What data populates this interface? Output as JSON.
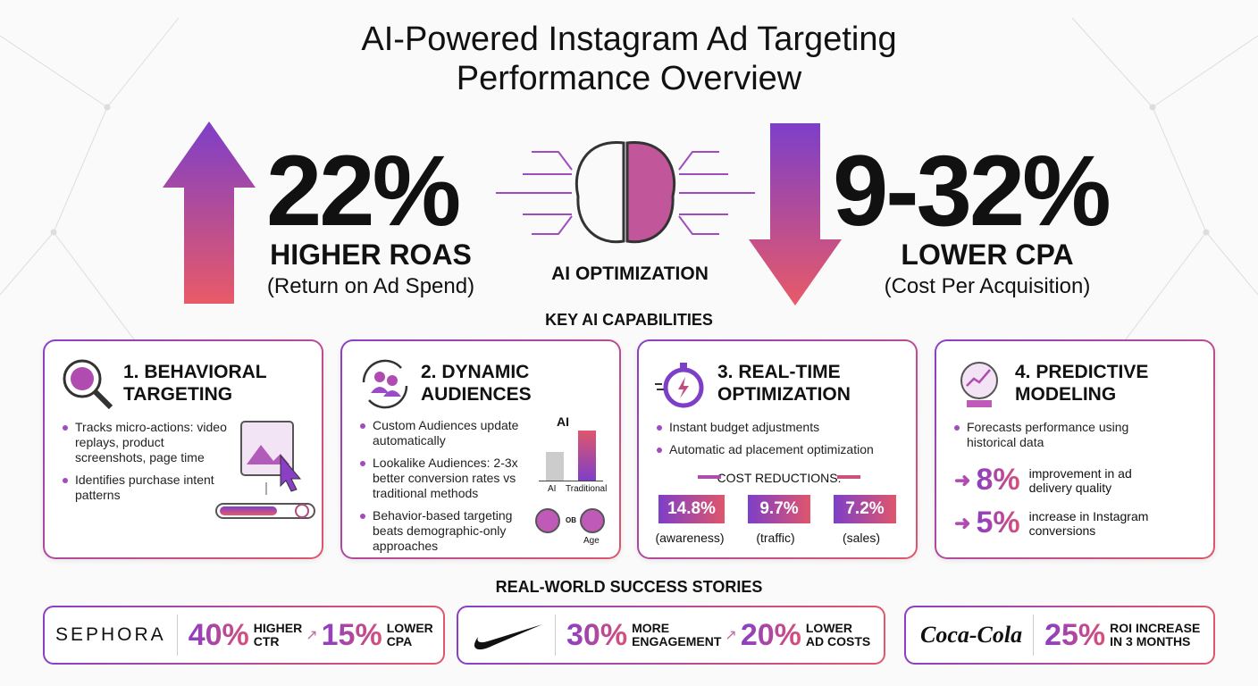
{
  "title": {
    "line1": "AI-Powered Instagram Ad Targeting",
    "line2": "Performance Overview"
  },
  "hero": {
    "left": {
      "value": "22%",
      "label": "HIGHER ROAS",
      "sublabel": "(Return on Ad Spend)"
    },
    "center": {
      "label": "AI OPTIMIZATION",
      "icon": "brain-circuit-icon"
    },
    "right": {
      "value": "9-32%",
      "label": "LOWER CPA",
      "sublabel": "(Cost Per Acquisition)"
    }
  },
  "capabilities": {
    "heading": "KEY AI CAPABILITIES",
    "cards": [
      {
        "title1": "1. BEHAVIORAL",
        "title2": "TARGETING",
        "icon": "brain-magnifier-icon",
        "bullets": [
          "Tracks micro-actions: video replays, product screenshots, page time",
          "Identifies purchase intent patterns"
        ]
      },
      {
        "title1": "2. DYNAMIC",
        "title2": "AUDIENCES",
        "icon": "audience-refresh-icon",
        "bullets": [
          "Custom Audiences update automatically",
          "Lookalike Audiences: 2-3x better conversion rates vs traditional methods",
          "Behavior-based targeting beats demographic-only approaches"
        ],
        "chart": {
          "top_label": "AI",
          "labels": [
            "AI",
            "Traditional"
          ]
        },
        "or_label": "OB",
        "age_label": "Age"
      },
      {
        "title1": "3. REAL-TIME",
        "title2": "OPTIMIZATION",
        "icon": "stopwatch-icon",
        "bullets": [
          "Instant budget adjustments",
          "Automatic ad placement optimization"
        ],
        "cost_heading": "COST REDUCTIONS:",
        "reductions": [
          {
            "value": "14.8%",
            "label": "(awareness)"
          },
          {
            "value": "9.7%",
            "label": "(traffic)"
          },
          {
            "value": "7.2%",
            "label": "(sales)"
          }
        ]
      },
      {
        "title1": "4. PREDICTIVE",
        "title2": "MODELING",
        "icon": "crystal-ball-chart-icon",
        "bullets": [
          "Forecasts performance using historical data"
        ],
        "stats": [
          {
            "value": "8%",
            "label": "improvement in ad delivery quality"
          },
          {
            "value": "5%",
            "label": "increase in Instagram conversions"
          }
        ]
      }
    ]
  },
  "stories": {
    "heading": "REAL-WORLD SUCCESS STORIES",
    "items": [
      {
        "brand": "SEPHORA",
        "stats": [
          {
            "value": "40%",
            "l1": "HIGHER",
            "l2": "CTR"
          },
          {
            "value": "15%",
            "l1": "LOWER",
            "l2": "CPA"
          }
        ]
      },
      {
        "brand": "Nike",
        "stats": [
          {
            "value": "30%",
            "l1": "MORE",
            "l2": "ENGAGEMENT"
          },
          {
            "value": "20%",
            "l1": "LOWER",
            "l2": "AD COSTS"
          }
        ]
      },
      {
        "brand": "Coca-Cola",
        "stats": [
          {
            "value": "25%",
            "l1": "ROI INCREASE",
            "l2": "IN 3 MONTHS"
          }
        ]
      }
    ]
  },
  "colors": {
    "purple": "#7d3fc8",
    "pink": "#e0566c"
  }
}
